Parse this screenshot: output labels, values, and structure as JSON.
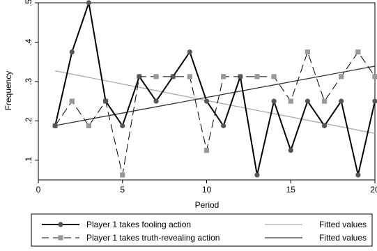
{
  "chart_data": {
    "type": "line",
    "xlabel": "Period",
    "ylabel": "Frequency",
    "xlim": [
      0,
      20
    ],
    "ylim": [
      0.05,
      0.5
    ],
    "xticks": [
      0,
      5,
      10,
      15,
      20
    ],
    "yticks": [
      0.1,
      0.2,
      0.3,
      0.4,
      0.5
    ],
    "ytick_labels": [
      ".1",
      ".2",
      ".3",
      ".4",
      ".5"
    ],
    "grid": false,
    "legend_position": "bottom",
    "series": [
      {
        "name": "Player 1 takes fooling action",
        "style": "solid-circle",
        "color": "#000000",
        "x": [
          1,
          2,
          3,
          4,
          5,
          6,
          7,
          8,
          9,
          10,
          11,
          12,
          13,
          14,
          15,
          16,
          17,
          18,
          19,
          20
        ],
        "y": [
          0.1875,
          0.375,
          0.5,
          0.25,
          0.1875,
          0.3125,
          0.25,
          0.3125,
          0.375,
          0.25,
          0.1875,
          0.3125,
          0.0625,
          0.25,
          0.125,
          0.25,
          0.1875,
          0.25,
          0.0625,
          0.25
        ]
      },
      {
        "name": "Player 1 takes truth-revealing action",
        "style": "dashed-square",
        "color": "#999999",
        "x": [
          1,
          2,
          3,
          4,
          5,
          6,
          7,
          8,
          9,
          10,
          11,
          12,
          13,
          14,
          15,
          16,
          17,
          18,
          19,
          20
        ],
        "y": [
          0.1875,
          0.25,
          0.1875,
          0.25,
          0.0625,
          0.3125,
          0.3125,
          0.3125,
          0.3125,
          0.125,
          0.3125,
          0.3125,
          0.3125,
          0.3125,
          0.25,
          0.375,
          0.25,
          0.3125,
          0.375,
          0.3125
        ]
      },
      {
        "name": "Fitted values",
        "style": "fit-light",
        "color": "#aaaaaa",
        "x": [
          1,
          20
        ],
        "y": [
          0.327,
          0.168
        ]
      },
      {
        "name": "Fitted values",
        "style": "fit-dark",
        "color": "#333333",
        "x": [
          1,
          20
        ],
        "y": [
          0.188,
          0.339
        ]
      }
    ]
  }
}
